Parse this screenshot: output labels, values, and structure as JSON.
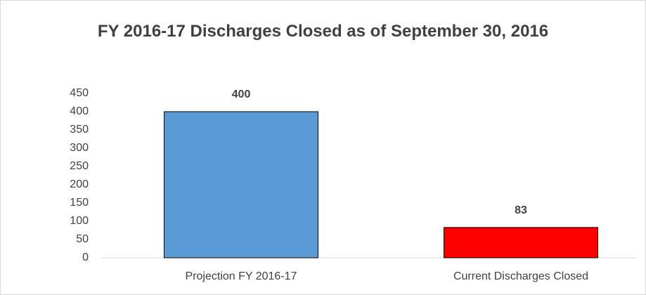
{
  "chart_data": {
    "type": "bar",
    "title": "FY 2016-17 Discharges Closed as of September 30, 2016",
    "categories": [
      "Projection FY 2016-17",
      "Current Discharges Closed"
    ],
    "values": [
      400,
      83
    ],
    "colors": [
      "#5b9bd5",
      "#ff0000"
    ],
    "ylim": [
      0,
      450
    ],
    "yticks": [
      0,
      50,
      100,
      150,
      200,
      250,
      300,
      350,
      400,
      450
    ],
    "grid": false
  }
}
